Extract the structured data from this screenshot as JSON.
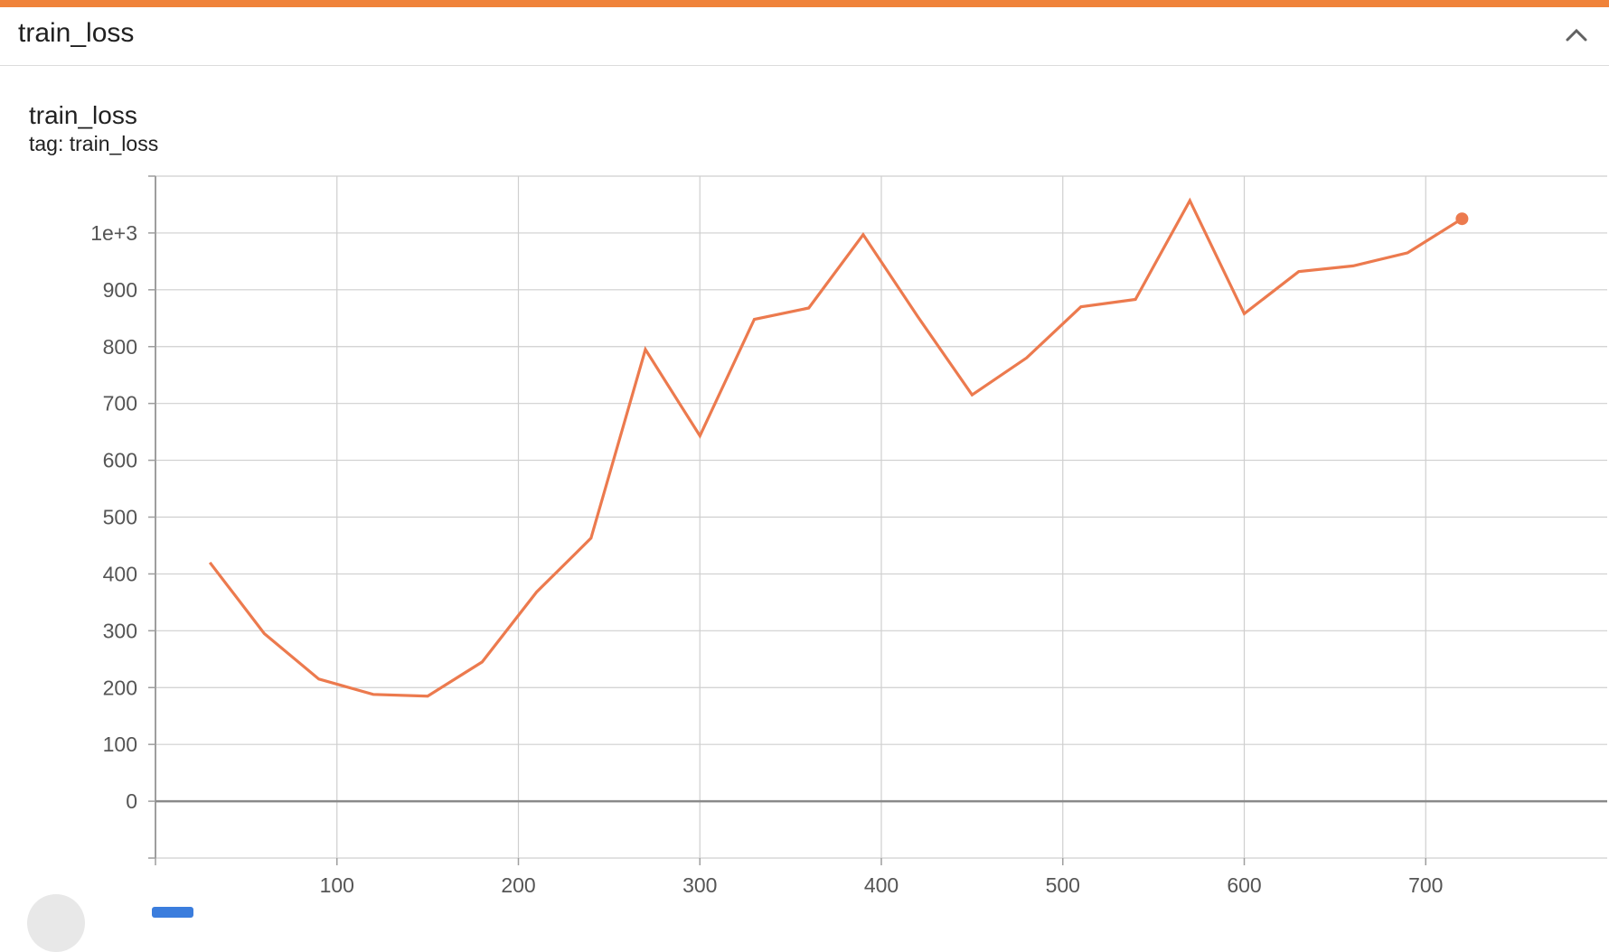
{
  "theme": {
    "accent": "#f0833a",
    "line": "#ec7a4e",
    "grid": "#cfcfcf",
    "zero_line": "#8a8a8a"
  },
  "header": {
    "title": "train_loss",
    "collapse_icon": "chevron-up-icon"
  },
  "chart": {
    "title": "train_loss",
    "tag": "tag: train_loss"
  },
  "chart_data": {
    "type": "line",
    "title": "train_loss",
    "subtitle": "tag: train_loss",
    "xlabel": "",
    "ylabel": "",
    "xlim": [
      0,
      800
    ],
    "ylim": [
      -100,
      1100
    ],
    "x_ticks": [
      100,
      200,
      300,
      400,
      500,
      600,
      700
    ],
    "y_ticks": [
      0,
      100,
      200,
      300,
      400,
      500,
      600,
      700,
      800,
      900,
      1000
    ],
    "y_tick_labels": [
      "0",
      "100",
      "200",
      "300",
      "400",
      "500",
      "600",
      "700",
      "800",
      "900",
      "1e+3"
    ],
    "grid": true,
    "series": [
      {
        "x": [
          30,
          60,
          90,
          120,
          150,
          180,
          210,
          240,
          270,
          300,
          330,
          360,
          390,
          420,
          450,
          480,
          510,
          540,
          570,
          600,
          630,
          660,
          690,
          720
        ],
        "values": [
          420,
          295,
          215,
          188,
          185,
          245,
          368,
          463,
          795,
          643,
          848,
          868,
          997,
          853,
          715,
          780,
          870,
          883,
          1057,
          858,
          932,
          942,
          965,
          1025
        ],
        "color": "#ec7a4e"
      }
    ]
  }
}
